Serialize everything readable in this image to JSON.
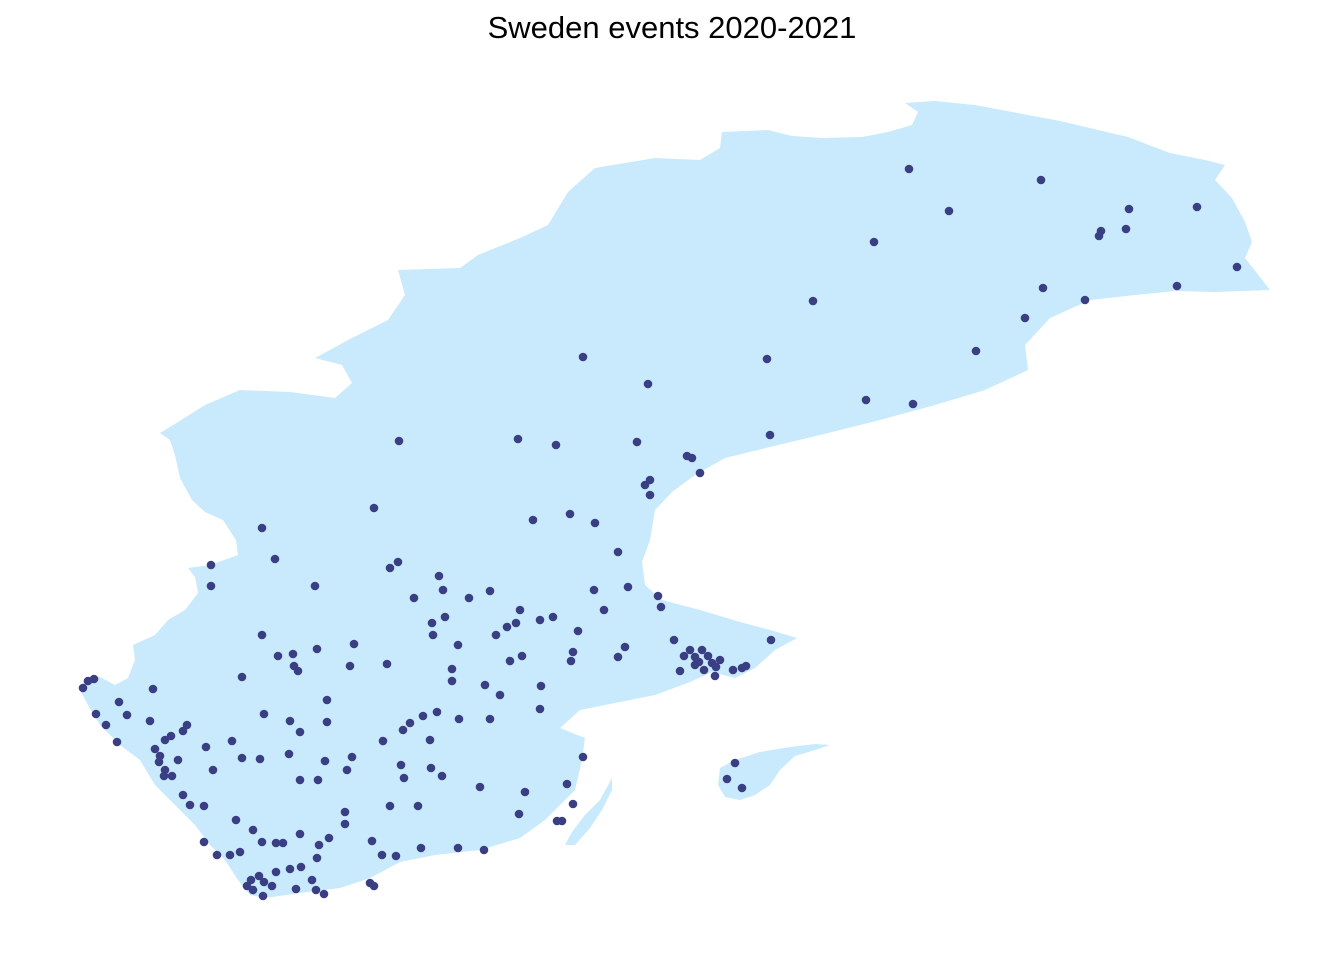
{
  "map": {
    "title": "Sweden events 2020-2021",
    "colors": {
      "land": "#c8eafc",
      "point": "#3a3f84"
    }
  }
}
